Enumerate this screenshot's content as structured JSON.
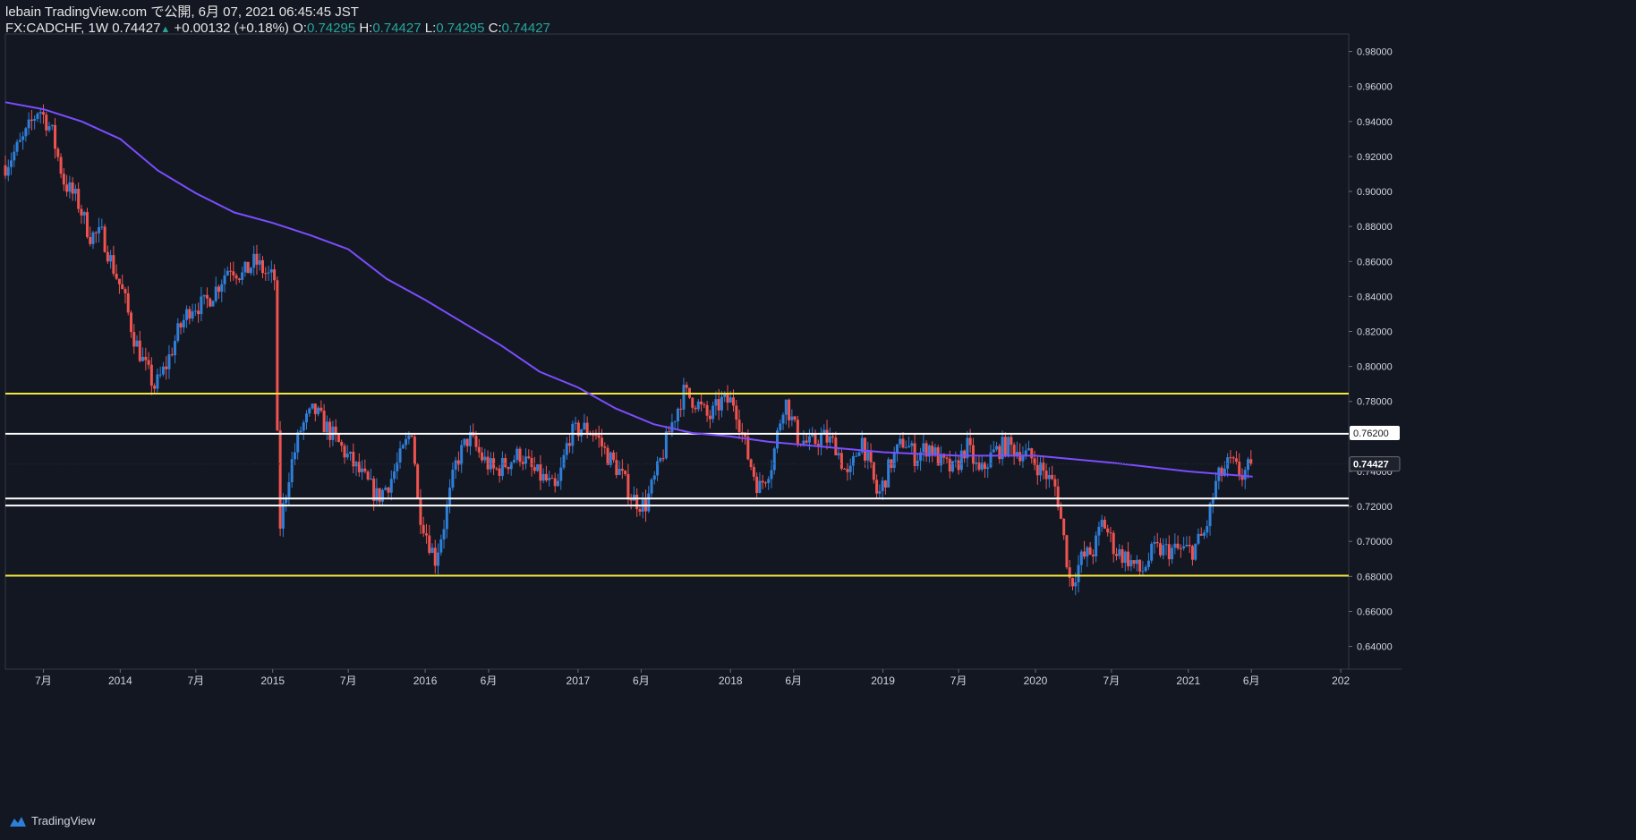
{
  "header": {
    "publish_line": "lebain TradingView.com で公開, 6月 07, 2021 06:45:45 JST",
    "symbol": "FX:CADCHF, 1W",
    "last": "0.74427",
    "change": "+0.00132 (+0.18%)",
    "o_label": "O:",
    "o": "0.74295",
    "h_label": "H:",
    "h": "0.74427",
    "l_label": "L:",
    "l": "0.74295",
    "c_label": "C:",
    "c": "0.74427"
  },
  "footer": {
    "brand": "TradingView"
  },
  "colors": {
    "background": "#131722",
    "up": "#2f7fd8",
    "down": "#ef5350",
    "ma": "#7c4dff",
    "level_yellow": "#f5e642",
    "level_white": "#ffffff",
    "text": "#d1d4dc"
  },
  "chart_data": {
    "type": "candlestick",
    "symbol": "FX:CADCHF",
    "interval": "1W",
    "x_range": [
      "2013-04-01",
      "2022-01-20"
    ],
    "ylim": [
      0.627,
      0.99
    ],
    "y_ticks": [
      0.64,
      0.66,
      0.68,
      0.7,
      0.72,
      0.74,
      0.76,
      0.78,
      0.8,
      0.82,
      0.84,
      0.86,
      0.88,
      0.9,
      0.92,
      0.94,
      0.96,
      0.98
    ],
    "x_ticks": [
      {
        "date": "2013-07-01",
        "label": "7月"
      },
      {
        "date": "2014-01-01",
        "label": "2014"
      },
      {
        "date": "2014-07-01",
        "label": "7月"
      },
      {
        "date": "2015-01-01",
        "label": "2015"
      },
      {
        "date": "2015-07-01",
        "label": "7月"
      },
      {
        "date": "2016-01-01",
        "label": "2016"
      },
      {
        "date": "2016-06-01",
        "label": "6月"
      },
      {
        "date": "2017-01-01",
        "label": "2017"
      },
      {
        "date": "2017-06-01",
        "label": "6月"
      },
      {
        "date": "2018-01-01",
        "label": "2018"
      },
      {
        "date": "2018-06-01",
        "label": "6月"
      },
      {
        "date": "2019-01-01",
        "label": "2019"
      },
      {
        "date": "2019-07-01",
        "label": "7月"
      },
      {
        "date": "2020-01-01",
        "label": "2020"
      },
      {
        "date": "2020-07-01",
        "label": "7月"
      },
      {
        "date": "2021-01-01",
        "label": "2021"
      },
      {
        "date": "2021-06-01",
        "label": "6月"
      },
      {
        "date": "2022-01-01",
        "label": "202"
      }
    ],
    "price_path": [
      [
        "2013-04-01",
        0.915
      ],
      [
        "2013-05-15",
        0.93
      ],
      [
        "2013-06-20",
        0.948
      ],
      [
        "2013-07-20",
        0.935
      ],
      [
        "2013-08-20",
        0.905
      ],
      [
        "2013-09-20",
        0.895
      ],
      [
        "2013-10-20",
        0.875
      ],
      [
        "2013-11-20",
        0.875
      ],
      [
        "2013-12-10",
        0.86
      ],
      [
        "2014-01-10",
        0.84
      ],
      [
        "2014-02-01",
        0.818
      ],
      [
        "2014-03-01",
        0.8
      ],
      [
        "2014-03-25",
        0.788
      ],
      [
        "2014-04-20",
        0.8
      ],
      [
        "2014-05-20",
        0.82
      ],
      [
        "2014-06-20",
        0.835
      ],
      [
        "2014-07-20",
        0.835
      ],
      [
        "2014-08-20",
        0.845
      ],
      [
        "2014-09-20",
        0.858
      ],
      [
        "2014-10-20",
        0.852
      ],
      [
        "2014-11-20",
        0.86
      ],
      [
        "2014-12-20",
        0.852
      ],
      [
        "2015-01-05",
        0.85
      ],
      [
        "2015-01-16",
        0.705
      ],
      [
        "2015-02-10",
        0.74
      ],
      [
        "2015-03-10",
        0.765
      ],
      [
        "2015-04-10",
        0.775
      ],
      [
        "2015-05-10",
        0.765
      ],
      [
        "2015-06-10",
        0.755
      ],
      [
        "2015-07-10",
        0.745
      ],
      [
        "2015-08-10",
        0.735
      ],
      [
        "2015-09-10",
        0.725
      ],
      [
        "2015-10-10",
        0.735
      ],
      [
        "2015-11-10",
        0.752
      ],
      [
        "2015-12-01",
        0.765
      ],
      [
        "2015-12-15",
        0.72
      ],
      [
        "2016-01-10",
        0.7
      ],
      [
        "2016-01-25",
        0.69
      ],
      [
        "2016-02-15",
        0.71
      ],
      [
        "2016-03-15",
        0.745
      ],
      [
        "2016-04-15",
        0.76
      ],
      [
        "2016-05-15",
        0.748
      ],
      [
        "2016-06-15",
        0.74
      ],
      [
        "2016-07-15",
        0.745
      ],
      [
        "2016-08-15",
        0.75
      ],
      [
        "2016-09-15",
        0.74
      ],
      [
        "2016-10-15",
        0.735
      ],
      [
        "2016-11-10",
        0.728
      ],
      [
        "2016-12-10",
        0.76
      ],
      [
        "2017-01-10",
        0.765
      ],
      [
        "2017-02-10",
        0.762
      ],
      [
        "2017-03-10",
        0.75
      ],
      [
        "2017-04-10",
        0.74
      ],
      [
        "2017-05-10",
        0.725
      ],
      [
        "2017-06-10",
        0.72
      ],
      [
        "2017-07-10",
        0.74
      ],
      [
        "2017-08-10",
        0.765
      ],
      [
        "2017-09-10",
        0.785
      ],
      [
        "2017-10-10",
        0.78
      ],
      [
        "2017-11-10",
        0.77
      ],
      [
        "2017-12-10",
        0.78
      ],
      [
        "2018-01-10",
        0.78
      ],
      [
        "2018-02-10",
        0.75
      ],
      [
        "2018-03-10",
        0.73
      ],
      [
        "2018-04-10",
        0.745
      ],
      [
        "2018-05-10",
        0.782
      ],
      [
        "2018-06-10",
        0.76
      ],
      [
        "2018-07-10",
        0.755
      ],
      [
        "2018-08-10",
        0.76
      ],
      [
        "2018-09-10",
        0.755
      ],
      [
        "2018-10-10",
        0.735
      ],
      [
        "2018-11-10",
        0.76
      ],
      [
        "2018-12-20",
        0.725
      ],
      [
        "2019-01-20",
        0.745
      ],
      [
        "2019-02-20",
        0.758
      ],
      [
        "2019-03-20",
        0.748
      ],
      [
        "2019-04-20",
        0.755
      ],
      [
        "2019-05-20",
        0.745
      ],
      [
        "2019-06-20",
        0.74
      ],
      [
        "2019-07-20",
        0.755
      ],
      [
        "2019-08-20",
        0.738
      ],
      [
        "2019-09-20",
        0.75
      ],
      [
        "2019-10-20",
        0.755
      ],
      [
        "2019-11-20",
        0.752
      ],
      [
        "2019-12-20",
        0.748
      ],
      [
        "2020-01-20",
        0.74
      ],
      [
        "2020-02-20",
        0.73
      ],
      [
        "2020-03-10",
        0.7
      ],
      [
        "2020-03-25",
        0.675
      ],
      [
        "2020-04-20",
        0.69
      ],
      [
        "2020-05-20",
        0.695
      ],
      [
        "2020-06-10",
        0.712
      ],
      [
        "2020-07-10",
        0.695
      ],
      [
        "2020-08-10",
        0.69
      ],
      [
        "2020-09-10",
        0.682
      ],
      [
        "2020-10-10",
        0.695
      ],
      [
        "2020-11-10",
        0.695
      ],
      [
        "2020-12-10",
        0.695
      ],
      [
        "2021-01-10",
        0.695
      ],
      [
        "2021-02-10",
        0.705
      ],
      [
        "2021-03-10",
        0.735
      ],
      [
        "2021-04-10",
        0.745
      ],
      [
        "2021-05-10",
        0.738
      ],
      [
        "2021-06-04",
        0.74427
      ]
    ],
    "moving_average": [
      [
        "2013-04-01",
        0.951
      ],
      [
        "2013-07-01",
        0.947
      ],
      [
        "2013-10-01",
        0.94
      ],
      [
        "2014-01-01",
        0.93
      ],
      [
        "2014-04-01",
        0.912
      ],
      [
        "2014-07-01",
        0.899
      ],
      [
        "2014-10-01",
        0.888
      ],
      [
        "2015-01-01",
        0.882
      ],
      [
        "2015-04-01",
        0.875
      ],
      [
        "2015-07-01",
        0.867
      ],
      [
        "2015-10-01",
        0.85
      ],
      [
        "2016-01-01",
        0.838
      ],
      [
        "2016-04-01",
        0.825
      ],
      [
        "2016-07-01",
        0.812
      ],
      [
        "2016-10-01",
        0.797
      ],
      [
        "2017-01-01",
        0.788
      ],
      [
        "2017-04-01",
        0.776
      ],
      [
        "2017-07-01",
        0.767
      ],
      [
        "2017-10-01",
        0.762
      ],
      [
        "2018-01-01",
        0.76
      ],
      [
        "2018-04-01",
        0.757
      ],
      [
        "2018-07-01",
        0.755
      ],
      [
        "2018-10-01",
        0.753
      ],
      [
        "2019-01-01",
        0.751
      ],
      [
        "2019-07-01",
        0.749
      ],
      [
        "2020-01-01",
        0.749
      ],
      [
        "2020-07-01",
        0.745
      ],
      [
        "2021-01-01",
        0.74
      ],
      [
        "2021-06-04",
        0.737
      ]
    ],
    "horizontal_levels": [
      {
        "price": 0.7845,
        "color": "yellow"
      },
      {
        "price": 0.7615,
        "color": "white"
      },
      {
        "price": 0.7245,
        "color": "white"
      },
      {
        "price": 0.7205,
        "color": "white"
      },
      {
        "price": 0.6804,
        "color": "yellow"
      }
    ],
    "price_labels": [
      {
        "price": 0.762,
        "text": "0.76200",
        "style": "white"
      },
      {
        "price": 0.74427,
        "text": "0.74427",
        "style": "current"
      }
    ]
  }
}
